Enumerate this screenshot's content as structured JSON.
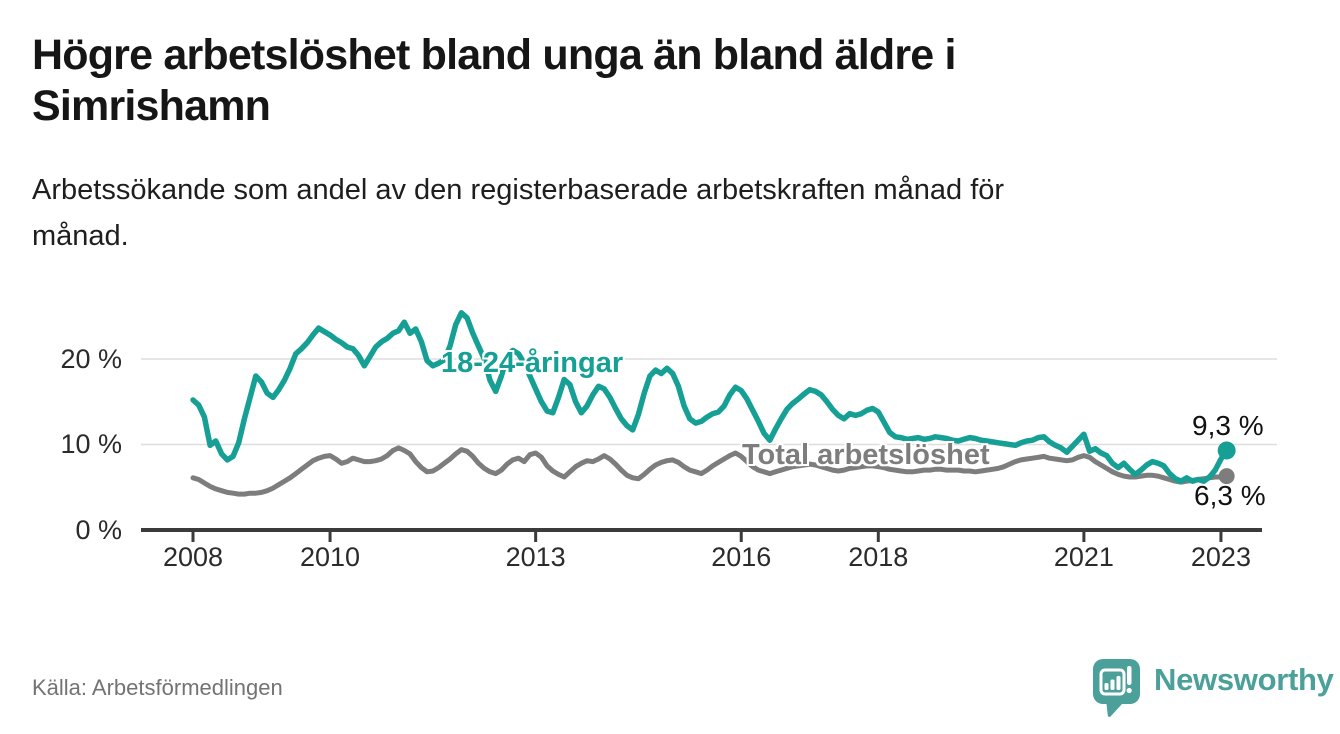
{
  "header": {
    "title": "Högre arbetslöshet bland unga än bland äldre i Simrishamn",
    "title_lines": [
      "Högre arbetslöshet bland unga än bland äldre i",
      "Simrishamn"
    ],
    "subtitle": "Arbetssökande som andel av den registerbaserade arbetskraften månad för månad.",
    "subtitle_lines": [
      "Arbetssökande som andel av den registerbaserade arbetskraften månad för",
      "månad."
    ]
  },
  "footer": {
    "source": "Källa: Arbetsförmedlingen",
    "logo_text": "Newsworthy",
    "logo_color": "#4ba19a"
  },
  "colors": {
    "accent_teal": "#16a095",
    "series_gray": "#7d7d7d",
    "axis_line": "#3b3b3b",
    "gridline": "#dedede",
    "text_dark": "#161616",
    "tick_text": "#2b2b2b"
  },
  "chart_data": {
    "type": "line",
    "title": "Högre arbetslöshet bland unga än bland äldre i Simrishamn",
    "subtitle": "Arbetssökande som andel av den registerbaserade arbetskraften månad för månad.",
    "unit": "%",
    "grid": "horizontal",
    "legend_position": "inline-labels",
    "x_start_year": 2008,
    "x_step_months": 1,
    "x_end_year_approx": 2023.083,
    "x_ticks": [
      2008,
      2010,
      2013,
      2016,
      2018,
      2021,
      2023
    ],
    "y_ticks": [
      {
        "value": 0,
        "label": "0 %"
      },
      {
        "value": 10,
        "label": "10 %"
      },
      {
        "value": 20,
        "label": "20 %"
      }
    ],
    "ylim": [
      0,
      27
    ],
    "series": [
      {
        "name": "18-24-åringar",
        "color": "#16a095",
        "end_label": "9,3 %",
        "end_value": 9.3,
        "values": [
          15.2,
          14.6,
          13.2,
          9.9,
          10.4,
          8.9,
          8.2,
          8.6,
          10.2,
          13.0,
          15.5,
          18.0,
          17.3,
          16.0,
          15.5,
          16.4,
          17.5,
          18.9,
          20.6,
          21.2,
          21.9,
          22.8,
          23.6,
          23.2,
          22.8,
          22.3,
          21.9,
          21.4,
          21.2,
          20.4,
          19.2,
          20.3,
          21.4,
          22.0,
          22.4,
          23.0,
          23.3,
          24.3,
          23.0,
          23.5,
          22.0,
          19.8,
          19.2,
          19.5,
          19.9,
          21.5,
          24.0,
          25.4,
          24.8,
          23.0,
          21.5,
          20.0,
          17.5,
          16.2,
          18.0,
          20.3,
          21.0,
          20.6,
          19.5,
          18.0,
          16.5,
          15.0,
          13.9,
          13.7,
          15.5,
          17.6,
          17.0,
          15.0,
          13.7,
          14.5,
          15.8,
          16.8,
          16.5,
          15.5,
          14.2,
          13.0,
          12.2,
          11.7,
          13.5,
          16.0,
          18.0,
          18.7,
          18.3,
          18.9,
          18.3,
          16.8,
          14.5,
          13.0,
          12.5,
          12.7,
          13.2,
          13.6,
          13.8,
          14.5,
          15.8,
          16.7,
          16.3,
          15.3,
          14.0,
          12.7,
          11.3,
          10.5,
          11.8,
          13.0,
          14.1,
          14.8,
          15.3,
          15.9,
          16.4,
          16.2,
          15.8,
          15.0,
          14.1,
          13.4,
          13.0,
          13.6,
          13.4,
          13.6,
          14.0,
          14.2,
          13.8,
          12.6,
          11.4,
          10.9,
          10.8,
          10.6,
          10.7,
          10.8,
          10.6,
          10.7,
          10.9,
          10.8,
          10.7,
          10.5,
          10.4,
          10.6,
          10.8,
          10.7,
          10.5,
          10.4,
          10.3,
          10.2,
          10.1,
          10.0,
          9.9,
          10.2,
          10.4,
          10.5,
          10.8,
          10.9,
          10.3,
          9.9,
          9.6,
          9.1,
          9.8,
          10.5,
          11.2,
          9.2,
          9.5,
          9.0,
          8.7,
          7.8,
          7.3,
          7.8,
          7.1,
          6.5,
          7.0,
          7.6,
          8.0,
          7.8,
          7.5,
          6.6,
          6.0,
          5.7,
          6.1,
          5.7,
          5.9,
          5.7,
          6.2,
          7.0,
          8.3,
          9.3
        ]
      },
      {
        "name": "Total arbetslöshet",
        "color": "#7d7d7d",
        "end_label": "6,3 %",
        "end_value": 6.3,
        "values": [
          6.1,
          5.9,
          5.5,
          5.1,
          4.8,
          4.6,
          4.4,
          4.3,
          4.2,
          4.2,
          4.3,
          4.3,
          4.4,
          4.6,
          4.9,
          5.3,
          5.7,
          6.1,
          6.6,
          7.1,
          7.6,
          8.1,
          8.4,
          8.6,
          8.7,
          8.3,
          7.8,
          8.0,
          8.4,
          8.2,
          8.0,
          8.0,
          8.1,
          8.3,
          8.7,
          9.3,
          9.6,
          9.3,
          8.9,
          8.0,
          7.3,
          6.8,
          6.9,
          7.3,
          7.8,
          8.3,
          8.9,
          9.4,
          9.2,
          8.6,
          7.8,
          7.2,
          6.8,
          6.6,
          7.0,
          7.7,
          8.2,
          8.4,
          8.0,
          8.8,
          9.0,
          8.5,
          7.5,
          6.9,
          6.5,
          6.2,
          6.8,
          7.4,
          7.8,
          8.1,
          8.0,
          8.3,
          8.7,
          8.3,
          7.7,
          7.0,
          6.4,
          6.1,
          6.0,
          6.5,
          7.1,
          7.6,
          7.9,
          8.1,
          8.2,
          7.9,
          7.4,
          7.0,
          6.8,
          6.6,
          7.0,
          7.5,
          7.9,
          8.3,
          8.7,
          9.0,
          8.6,
          8.0,
          7.4,
          7.0,
          6.8,
          6.6,
          6.8,
          7.0,
          7.2,
          7.4,
          7.5,
          7.6,
          7.7,
          7.6,
          7.4,
          7.2,
          7.0,
          6.9,
          7.0,
          7.2,
          7.3,
          7.4,
          7.5,
          7.5,
          7.4,
          7.3,
          7.1,
          7.0,
          6.9,
          6.8,
          6.8,
          6.9,
          7.0,
          7.0,
          7.1,
          7.1,
          7.0,
          7.0,
          7.0,
          6.9,
          6.9,
          6.8,
          6.9,
          7.0,
          7.1,
          7.2,
          7.4,
          7.7,
          8.0,
          8.2,
          8.3,
          8.4,
          8.5,
          8.6,
          8.4,
          8.3,
          8.2,
          8.1,
          8.2,
          8.5,
          8.7,
          8.5,
          8.0,
          7.6,
          7.2,
          6.8,
          6.5,
          6.3,
          6.2,
          6.2,
          6.3,
          6.4,
          6.4,
          6.3,
          6.1,
          5.9,
          5.7,
          5.6,
          5.7,
          5.8,
          5.9,
          6.0,
          6.1,
          6.2,
          6.2,
          6.3
        ]
      }
    ]
  }
}
